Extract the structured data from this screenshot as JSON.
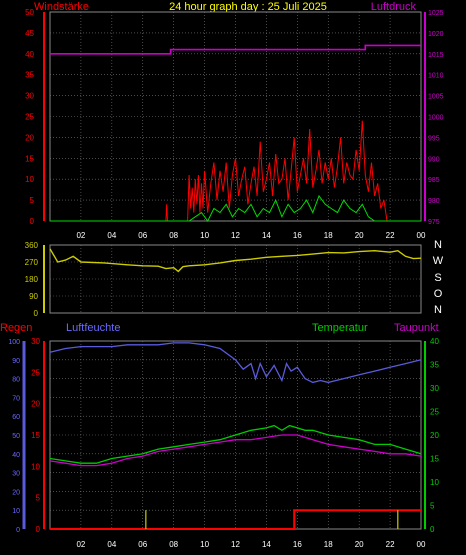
{
  "header": {
    "title": "24 hour graph day : 25 Juli 2025",
    "left_label": "Windstärke",
    "right_label": "Luftdruck"
  },
  "panel2": {
    "compass_labels": [
      "N",
      "W",
      "S",
      "O",
      "N"
    ]
  },
  "panel3": {
    "labels": {
      "regen": "Regen",
      "luftfeuchte": "Luftfeuchte",
      "temperatur": "Temperatur",
      "taupunkt": "Taupunkt"
    }
  },
  "colors": {
    "wind": "#ff0000",
    "gust": "#00dd00",
    "pressure": "#cc00cc",
    "direction": "#cccc00",
    "humidity": "#5a5adc",
    "temperature": "#00cc00",
    "dewpoint": "#cc00cc",
    "rain": "#ff0000",
    "rain_rate": "#cccc00",
    "title": "#ffff00",
    "grid": "#7a7a7a"
  },
  "chart_data": [
    {
      "id": "wind_pressure",
      "type": "line",
      "x_tick_labels": [
        "02",
        "04",
        "06",
        "08",
        "10",
        "12",
        "14",
        "16",
        "18",
        "20",
        "22",
        "00"
      ],
      "left_axis": {
        "ticks": [
          0,
          5,
          10,
          15,
          20,
          25,
          30,
          35,
          40,
          45,
          50
        ],
        "range": [
          0,
          50
        ]
      },
      "right_axis": {
        "ticks": [
          975,
          980,
          985,
          990,
          995,
          1000,
          1005,
          1010,
          1015,
          1020,
          1025
        ],
        "range": [
          975,
          1025
        ]
      },
      "series": [
        {
          "key": "pressure",
          "axis": "right",
          "color": "#cc00cc",
          "x": [
            0,
            7.8,
            7.8,
            20.4,
            20.4,
            24
          ],
          "y": [
            1015,
            1015,
            1016,
            1016,
            1017,
            1017
          ]
        },
        {
          "key": "wind",
          "axis": "left",
          "color": "#ff0000",
          "x": [
            0,
            7.5,
            7.55,
            7.6,
            8.9,
            9.0,
            9.1,
            9.2,
            9.3,
            9.4,
            9.5,
            9.6,
            9.7,
            9.8,
            9.9,
            10.0,
            10.2,
            10.4,
            10.6,
            10.8,
            11.0,
            11.2,
            11.4,
            11.6,
            11.8,
            12.0,
            12.2,
            12.4,
            12.6,
            12.8,
            13.0,
            13.2,
            13.4,
            13.6,
            13.8,
            14.0,
            14.2,
            14.4,
            14.6,
            14.8,
            15.0,
            15.2,
            15.4,
            15.6,
            15.8,
            16.0,
            16.2,
            16.4,
            16.6,
            16.8,
            17.0,
            17.2,
            17.4,
            17.6,
            17.8,
            18.0,
            18.2,
            18.4,
            18.6,
            18.8,
            19.0,
            19.2,
            19.4,
            19.6,
            19.8,
            20.0,
            20.2,
            20.4,
            20.6,
            20.8,
            21.0,
            21.2,
            21.4,
            21.6,
            21.8,
            24
          ],
          "y": [
            0,
            0,
            4,
            0,
            0,
            11,
            3,
            8,
            2,
            10,
            4,
            11,
            2,
            9,
            3,
            12,
            2,
            9,
            14,
            5,
            12,
            7,
            14,
            3,
            11,
            15,
            6,
            10,
            13,
            4,
            9,
            13,
            6,
            19,
            7,
            10,
            14,
            6,
            16,
            9,
            10,
            15,
            5,
            12,
            20,
            7,
            11,
            15,
            9,
            22,
            8,
            12,
            17,
            9,
            14,
            10,
            15,
            8,
            13,
            20,
            9,
            14,
            11,
            10,
            17,
            12,
            24,
            11,
            7,
            14,
            6,
            9,
            3,
            5,
            0,
            0
          ]
        },
        {
          "key": "gust",
          "axis": "left",
          "color": "#00dd00",
          "x": [
            0,
            9.0,
            9.4,
            9.8,
            10.2,
            10.6,
            11.0,
            11.4,
            11.8,
            12.2,
            12.6,
            13.0,
            13.4,
            13.8,
            14.2,
            14.6,
            15.0,
            15.4,
            15.8,
            16.2,
            16.6,
            17.0,
            17.4,
            17.8,
            18.2,
            18.6,
            19.0,
            19.4,
            19.8,
            20.2,
            20.6,
            21.0,
            24
          ],
          "y": [
            0,
            0,
            1,
            2,
            0,
            3,
            2,
            4,
            1,
            3,
            2,
            4,
            1,
            3,
            2,
            5,
            1,
            4,
            2,
            3,
            5,
            2,
            6,
            4,
            3,
            2,
            5,
            3,
            2,
            4,
            1,
            0,
            0
          ]
        }
      ]
    },
    {
      "id": "wind_direction",
      "type": "line",
      "left_axis": {
        "ticks": [
          0,
          90,
          180,
          270,
          360
        ],
        "range": [
          0,
          360
        ]
      },
      "series": [
        {
          "key": "direction",
          "color": "#cccc00",
          "x": [
            0,
            0.5,
            1.0,
            1.5,
            2.0,
            3.5,
            5.0,
            6.0,
            7.0,
            7.5,
            8.0,
            8.3,
            8.6,
            9.0,
            10.0,
            11.0,
            12.0,
            13.0,
            14.0,
            15.0,
            16.0,
            17.0,
            18.0,
            19.0,
            20.0,
            21.0,
            22.0,
            22.5,
            23.0,
            23.5,
            24
          ],
          "y": [
            340,
            270,
            280,
            300,
            270,
            265,
            255,
            250,
            248,
            235,
            240,
            220,
            245,
            250,
            255,
            265,
            278,
            285,
            295,
            300,
            305,
            312,
            320,
            318,
            325,
            330,
            322,
            330,
            300,
            288,
            290
          ]
        }
      ]
    },
    {
      "id": "temp_humidity_rain",
      "type": "line",
      "x_tick_labels": [
        "02",
        "04",
        "06",
        "08",
        "10",
        "12",
        "14",
        "16",
        "18",
        "20",
        "22",
        "00"
      ],
      "left_axis_rain": {
        "ticks": [
          0,
          5,
          10,
          15,
          20,
          25,
          30
        ],
        "range": [
          0,
          30
        ]
      },
      "left_axis_humidity": {
        "ticks": [
          0,
          10,
          20,
          30,
          40,
          50,
          60,
          70,
          80,
          90,
          100
        ],
        "range": [
          0,
          100
        ]
      },
      "right_axis": {
        "ticks": [
          0,
          5,
          10,
          15,
          20,
          25,
          30,
          35,
          40
        ],
        "range": [
          0,
          40
        ]
      },
      "series": [
        {
          "key": "humidity",
          "axis": "humidity",
          "color": "#5a5adc",
          "x": [
            0,
            1,
            2,
            3,
            4,
            5,
            6,
            7,
            8,
            9,
            10,
            11,
            12,
            12.5,
            13,
            13.3,
            13.6,
            14,
            14.5,
            15,
            15.3,
            15.6,
            16,
            16.5,
            17,
            17.5,
            18,
            19,
            20,
            21,
            22,
            23,
            24
          ],
          "y": [
            94,
            96,
            97,
            97,
            97,
            98,
            98,
            98,
            99,
            99,
            98,
            96,
            90,
            85,
            88,
            80,
            88,
            81,
            87,
            79,
            88,
            84,
            86,
            80,
            78,
            79,
            78,
            80,
            82,
            84,
            86,
            88,
            90
          ]
        },
        {
          "key": "temperature",
          "axis": "right",
          "color": "#00cc00",
          "x": [
            0,
            1,
            2,
            3,
            4,
            5,
            6,
            7,
            8,
            9,
            10,
            11,
            12,
            13,
            14,
            14.5,
            15,
            15.5,
            16,
            16.5,
            17,
            18,
            19,
            20,
            21,
            22,
            23,
            24
          ],
          "y": [
            15,
            14.5,
            14,
            14,
            15,
            15.5,
            16,
            17,
            17.5,
            18,
            18.5,
            19,
            20,
            21,
            21.5,
            22,
            21,
            22,
            21.5,
            21,
            21,
            20,
            19.5,
            19,
            18,
            18,
            17,
            16
          ]
        },
        {
          "key": "dewpoint",
          "axis": "right",
          "color": "#cc00cc",
          "x": [
            0,
            1,
            2,
            3,
            4,
            5,
            6,
            7,
            8,
            9,
            10,
            11,
            12,
            13,
            14,
            15,
            16,
            17,
            18,
            19,
            20,
            21,
            22,
            23,
            24
          ],
          "y": [
            14.5,
            14,
            13.5,
            13.5,
            14,
            15,
            15.5,
            16.5,
            17,
            17.5,
            18,
            18.5,
            19,
            19,
            19.5,
            20,
            20,
            19,
            18,
            17.5,
            17,
            16.5,
            16,
            16,
            15.5
          ]
        },
        {
          "key": "rain",
          "axis": "rain",
          "color": "#ff0000",
          "x": [
            0,
            15.8,
            15.8,
            24
          ],
          "y": [
            0,
            0,
            3,
            3
          ]
        },
        {
          "key": "rain_rate",
          "axis": "rain",
          "color": "#cccc00",
          "bars": true,
          "x": [
            6.2,
            22.5
          ],
          "y": [
            3,
            3
          ]
        }
      ]
    }
  ]
}
